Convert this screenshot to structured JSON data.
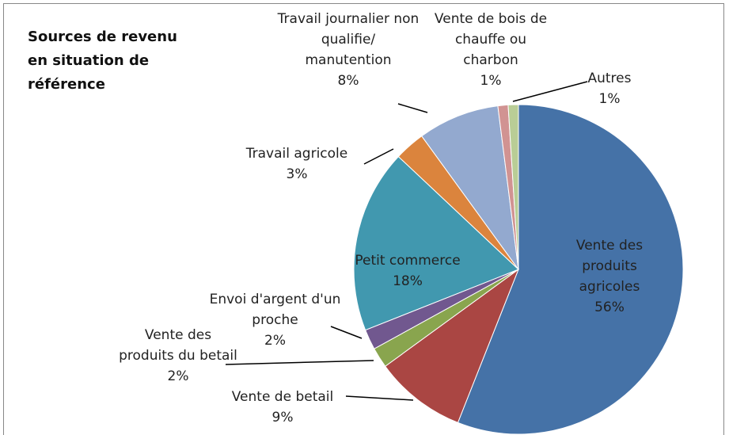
{
  "chart_data": {
    "type": "pie",
    "title": "Sources de revenu en situation de référence",
    "categories": [
      "Vente des produits agricoles",
      "Vente de betail",
      "Vente des produits du betail",
      "Envoi d'argent d'un proche",
      "Petit commerce",
      "Travail agricole",
      "Travail journalier non qualifie/ manutention",
      "Vente de bois de chauffe ou charbon",
      "Autres"
    ],
    "values": [
      56,
      9,
      2,
      2,
      18,
      3,
      8,
      1,
      1
    ],
    "value_labels": [
      "56%",
      "9%",
      "2%",
      "2%",
      "18%",
      "3%",
      "8%",
      "1%",
      "1%"
    ],
    "colors": [
      "#4572a7",
      "#aa4643",
      "#89a54e",
      "#71588f",
      "#4198af",
      "#db843d",
      "#93a9cf",
      "#d19392",
      "#b9cd96"
    ]
  }
}
